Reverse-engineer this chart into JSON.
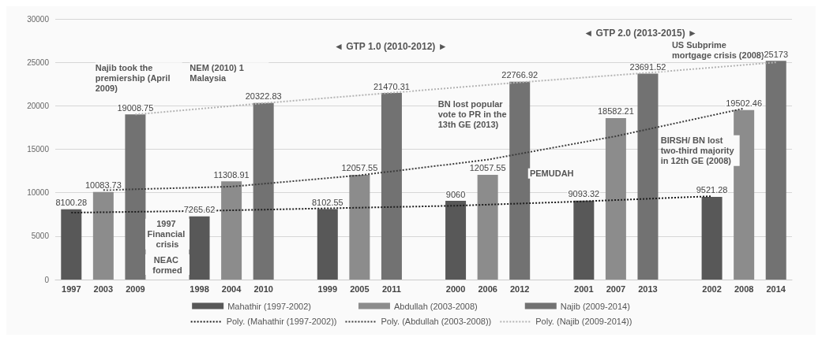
{
  "chart_data": {
    "type": "bar",
    "stacked": true,
    "categories": [
      "1997",
      "2003",
      "2009",
      null,
      "1998",
      "2004",
      "2010",
      null,
      "1999",
      "2005",
      "2011",
      null,
      "2000",
      "2006",
      "2012",
      null,
      "2001",
      "2007",
      "2013",
      null,
      "2002",
      "2008",
      "2014"
    ],
    "series": [
      {
        "name": "Mahathir (1997-2002)",
        "color": "#585858",
        "values": [
          8100.28,
          null,
          null,
          null,
          7265.62,
          null,
          null,
          null,
          8102.55,
          null,
          null,
          null,
          9060,
          null,
          null,
          null,
          9093.32,
          null,
          null,
          null,
          9521.28,
          null,
          null
        ],
        "value_labels": [
          "8100.28",
          null,
          null,
          null,
          "7265.62",
          null,
          null,
          null,
          "8102.55",
          null,
          null,
          null,
          "9060",
          null,
          null,
          null,
          "9093.32",
          null,
          null,
          null,
          "9521.28",
          null,
          null
        ]
      },
      {
        "name": "Abdullah (2003-2008)",
        "color": "#8c8c8c",
        "values": [
          null,
          10083.73,
          null,
          null,
          null,
          11308.91,
          null,
          null,
          null,
          12057.55,
          null,
          null,
          null,
          12057.55,
          null,
          null,
          null,
          18582.21,
          null,
          null,
          null,
          19502.46,
          null
        ],
        "value_labels": [
          null,
          "10083.73",
          null,
          null,
          null,
          "11308.91",
          null,
          null,
          null,
          "12057.55",
          null,
          null,
          null,
          "12057.55",
          null,
          null,
          null,
          "18582.21",
          null,
          null,
          null,
          "19502.46",
          null
        ]
      },
      {
        "name": "Najib (2009-2014)",
        "color": "#727272",
        "values": [
          null,
          null,
          19008.75,
          null,
          null,
          null,
          20322.83,
          null,
          null,
          null,
          21470.31,
          null,
          null,
          null,
          22766.92,
          null,
          null,
          null,
          23691.52,
          null,
          null,
          null,
          25173
        ],
        "value_labels": [
          null,
          null,
          "19008.75",
          null,
          null,
          null,
          "20322.83",
          null,
          null,
          null,
          "21470.31",
          null,
          null,
          null,
          "22766.92",
          null,
          null,
          null,
          "23691.52",
          null,
          null,
          null,
          "25173"
        ]
      },
      {
        "name": "Poly. (Mahathir (1997-2002))",
        "type": "line",
        "line_style": "dotted",
        "color": "#1e1e1e",
        "values": [
          7700,
          null,
          null,
          null,
          7900,
          null,
          null,
          null,
          8200,
          null,
          null,
          null,
          8500,
          null,
          null,
          null,
          9000,
          null,
          null,
          null,
          9600,
          null,
          null
        ]
      },
      {
        "name": "Poly. (Abdullah (2003-2008))",
        "type": "line",
        "line_style": "dotted",
        "color": "#3c3c3c",
        "values": [
          null,
          10300,
          null,
          null,
          null,
          10700,
          null,
          null,
          null,
          12000,
          null,
          null,
          null,
          13800,
          null,
          null,
          null,
          16500,
          null,
          null,
          null,
          19700,
          null
        ]
      },
      {
        "name": "Poly. (Najib (2009-2014))",
        "type": "line",
        "line_style": "dotted",
        "color": "#b4b4b4",
        "values": [
          null,
          null,
          19000,
          null,
          null,
          null,
          20300,
          null,
          null,
          null,
          21500,
          null,
          null,
          null,
          22700,
          null,
          null,
          null,
          23800,
          null,
          null,
          null,
          25000
        ]
      }
    ],
    "ylim": [
      0,
      30000
    ],
    "yticks": [
      0,
      5000,
      10000,
      15000,
      20000,
      25000,
      30000
    ],
    "grid": "y",
    "legend": "bottom",
    "annotations": [
      "Najib took the premiership (April 2009)",
      "NEM (2010) 1 Malaysia",
      "◄ GTP 1.0 (2010-2012) ►",
      "◄ GTP 2.0 (2013-2015) ►",
      "US Subprime mortgage crisis (2008)",
      "BN lost popular vote to PR in the 13th GE (2013)",
      "BIRSH/ BN lost two-third majority in 12th GE (2008)",
      "PEMUDAH",
      "1997 Financial crisis",
      "NEAC formed"
    ]
  }
}
